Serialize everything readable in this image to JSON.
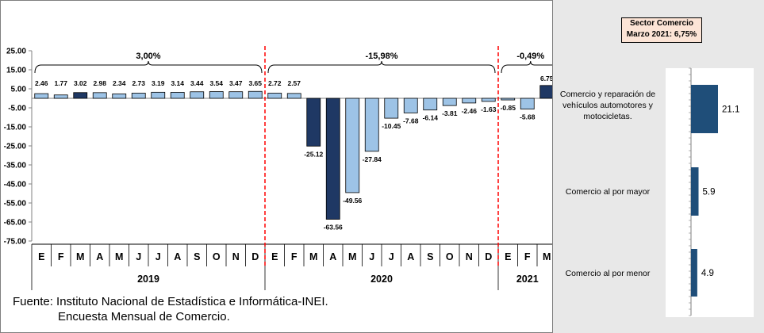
{
  "chart_data": [
    {
      "type": "bar",
      "categories": [
        "E",
        "F",
        "M",
        "A",
        "M",
        "J",
        "J",
        "A",
        "S",
        "O",
        "N",
        "D",
        "E",
        "F",
        "M",
        "A",
        "M",
        "J",
        "J",
        "A",
        "S",
        "O",
        "N",
        "D",
        "E",
        "F",
        "M"
      ],
      "years": [
        "2019",
        "2020",
        "2021"
      ],
      "values": [
        2.46,
        1.77,
        3.02,
        2.98,
        2.34,
        2.73,
        3.19,
        3.14,
        3.44,
        3.54,
        3.47,
        3.65,
        2.72,
        2.57,
        -25.12,
        -63.56,
        -49.56,
        -27.84,
        -10.45,
        -7.68,
        -6.14,
        -3.81,
        -2.46,
        -1.63,
        -0.85,
        -5.68,
        6.75
      ],
      "value_labels": [
        "2.46",
        "1.77",
        "3.02",
        "2.98",
        "2.34",
        "2.73",
        "3.19",
        "3.14",
        "3.44",
        "3.54",
        "3.47",
        "3.65",
        "2.72",
        "2.57",
        "-25.12",
        "-63.56",
        "-49.56",
        "-27.84",
        "-10.45",
        "-7.68",
        "-6.14",
        "-3.81",
        "-2.46",
        "-1.63",
        "-0.85",
        "-5.68",
        "6.75"
      ],
      "highlighted_months": [
        2,
        14,
        15,
        26
      ],
      "ylim": [
        -75,
        25
      ],
      "yticks": [
        "25.00",
        "15.00",
        "5.00",
        "-5.00",
        "-15.00",
        "-25.00",
        "-35.00",
        "-45.00",
        "-55.00",
        "-65.00",
        "-75.00"
      ],
      "annotations": [
        "3,00%",
        "-15,98%",
        "-0,49%"
      ],
      "colors": {
        "bar": "#9dc3e6",
        "highlight": "#1f3864",
        "divider": "#ff0000"
      },
      "grid": false
    },
    {
      "type": "bar",
      "orientation": "horizontal",
      "categories": [
        "Comercio y reparación de vehículos automotores y motocicletas.",
        "Comercio al por mayor",
        "Comercio al por menor"
      ],
      "values": [
        21.1,
        5.9,
        4.9
      ],
      "value_labels": [
        "21.1",
        "5.9",
        "4.9"
      ],
      "colors": {
        "bar": "#1f4e79"
      }
    }
  ],
  "side_box": {
    "line1": "Sector Comercio",
    "line2": "Marzo 2021: 6,75%"
  },
  "source": {
    "line1": "Fuente: Instituto Nacional de Estadística e Informática-INEI.",
    "line2": "Encuesta Mensual de Comercio."
  }
}
